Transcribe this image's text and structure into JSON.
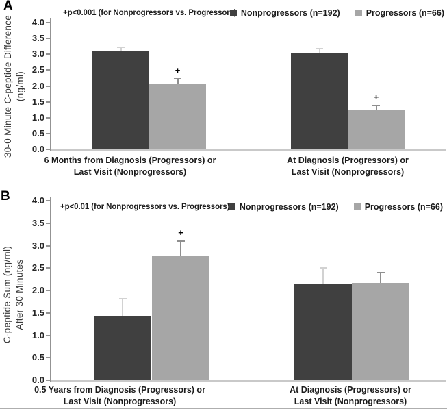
{
  "page": {
    "background": "#ffffff"
  },
  "chart_data": [
    {
      "panel_label": "A",
      "type": "bar",
      "annotation": "+p<0.001 (for Nonprogressors vs. Progressors)",
      "ylabel_lines": [
        "30-0 Minute C-peptide Difference",
        "(ng/ml)"
      ],
      "ylim": [
        0,
        4
      ],
      "ytick_labels": [
        "0.0",
        "0.5",
        "1.0",
        "1.5",
        "2.0",
        "2.5",
        "3.0",
        "3.5",
        "4.0"
      ],
      "grid": false,
      "legend_position": "top-right",
      "sig_symbol": "+",
      "legend": [
        {
          "label": "Nonprogressors (n=192)",
          "color": "#404040"
        },
        {
          "label": "Progressors (n=66)",
          "color": "#a6a6a6"
        }
      ],
      "categories": [
        {
          "line1": "6 Months from Diagnosis (Progressors) or",
          "line2": "Last Visit (Nonprogressors)"
        },
        {
          "line1": "At Diagnosis (Progressors) or",
          "line2": "Last Visit (Nonprogressors)"
        }
      ],
      "series": [
        {
          "name": "Nonprogressors (n=192)",
          "color": "#404040",
          "error_color": "#d2d2d2",
          "values": [
            3.12,
            3.03
          ],
          "errors": [
            0.1,
            0.15
          ],
          "significant": [
            false,
            false
          ]
        },
        {
          "name": "Progressors (n=66)",
          "color": "#a6a6a6",
          "error_color": "#8f8f8f",
          "values": [
            2.05,
            1.26
          ],
          "errors": [
            0.18,
            0.13
          ],
          "significant": [
            true,
            true
          ]
        }
      ]
    },
    {
      "panel_label": "B",
      "type": "bar",
      "annotation": "+p<0.01 (for Nonprogressors vs. Progressors)",
      "ylabel_lines": [
        "C-peptide Sum (ng/ml)",
        "After 30 Minutes"
      ],
      "ylim": [
        0,
        4
      ],
      "ytick_labels": [
        "0.0",
        "0.5",
        "1.0",
        "1.5",
        "2.0",
        "2.5",
        "3.0",
        "3.5",
        "4.0"
      ],
      "grid": false,
      "legend_position": "top-right",
      "sig_symbol": "+",
      "legend": [
        {
          "label": "Nonprogressors (n=192)",
          "color": "#404040"
        },
        {
          "label": "Progressors (n=66)",
          "color": "#a6a6a6"
        }
      ],
      "categories": [
        {
          "line1": "0.5 Years from Diagnosis (Progressors) or",
          "line2": "Last Visit (Nonprogressors)"
        },
        {
          "line1": "At Diagnosis (Progressors) or",
          "line2": "Last Visit (Nonprogressors)"
        }
      ],
      "series": [
        {
          "name": "Nonprogressors (n=192)",
          "color": "#404040",
          "error_color": "#d2d2d2",
          "values": [
            1.43,
            2.15
          ],
          "errors": [
            0.38,
            0.36
          ],
          "significant": [
            false,
            false
          ]
        },
        {
          "name": "Progressors (n=66)",
          "color": "#a6a6a6",
          "error_color": "#8f8f8f",
          "values": [
            2.76,
            2.17
          ],
          "errors": [
            0.34,
            0.23
          ],
          "significant": [
            true,
            false
          ]
        }
      ]
    }
  ]
}
